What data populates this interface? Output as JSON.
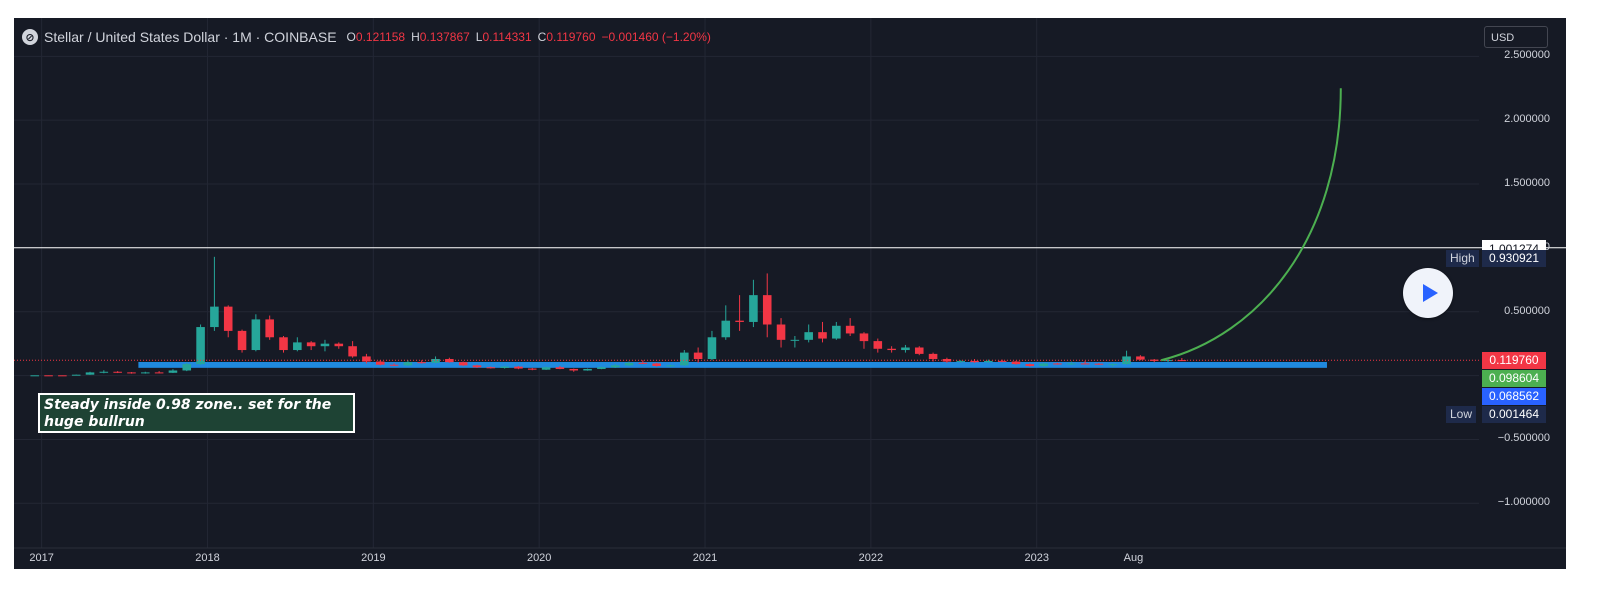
{
  "header": {
    "logo_glyph": "⊘",
    "title": "Stellar / United States Dollar · 1M · COINBASE",
    "ohlc": [
      {
        "key": "O",
        "value": "0.121158"
      },
      {
        "key": "H",
        "value": "0.137867"
      },
      {
        "key": "L",
        "value": "0.114331"
      },
      {
        "key": "C",
        "value": "0.119760"
      }
    ],
    "change": "−0.001460 (−1.20%)"
  },
  "currency_button": "USD",
  "price_labels": {
    "level_line": "1.001274",
    "high_tag": "High",
    "high_value": "0.930921",
    "close": "0.119760",
    "green": "0.098604",
    "blue": "0.068562",
    "low_tag": "Low",
    "low_value": "0.001464"
  },
  "annotation_text": "Steady inside 0.98 zone.. set for the huge bullrun",
  "colors": {
    "background": "#161a25",
    "up": "#26a69a",
    "down": "#f23645",
    "projection": "#4caf50",
    "zone": "#2196f3",
    "level_line": "#ffffff",
    "grid": "#232734"
  },
  "icons": [
    "stellar-logo-icon",
    "play-icon"
  ],
  "chart_data": {
    "type": "candlestick",
    "title": "Stellar / United States Dollar · 1M · COINBASE",
    "y_axis": {
      "ticks": [
        2.5,
        2.0,
        1.5,
        1.0,
        0.5,
        -0.5,
        -1.0
      ],
      "tick_labels": [
        "2.500000",
        "2.000000",
        "1.500000",
        "1.000000",
        "0.500000",
        "−0.500000",
        "−1.000000"
      ],
      "range": [
        -1.35,
        2.8
      ]
    },
    "x_axis": {
      "tick_labels": [
        "2017",
        "2018",
        "2019",
        "2020",
        "2021",
        "2022",
        "2023",
        "Aug"
      ],
      "tick_dates": [
        "2017-01",
        "2018-01",
        "2019-01",
        "2020-01",
        "2021-01",
        "2022-01",
        "2023-01",
        "2023-08"
      ],
      "range": [
        "2016-11",
        "2025-09"
      ]
    },
    "grid": true,
    "horizontal_level": 1.001274,
    "zone": {
      "from": "2017-08",
      "to": "2024-10",
      "low": 0.068562,
      "high": 0.098604
    },
    "projection_curve": {
      "from": {
        "date": "2023-10",
        "value": 0.12
      },
      "to": {
        "date": "2024-11",
        "value": 2.25
      }
    },
    "candles": [
      {
        "date": "2016-12",
        "o": 0.0022,
        "h": 0.0025,
        "l": 0.002,
        "c": 0.0023
      },
      {
        "date": "2017-01",
        "o": 0.0023,
        "h": 0.0026,
        "l": 0.002,
        "c": 0.0022
      },
      {
        "date": "2017-02",
        "o": 0.0022,
        "h": 0.0024,
        "l": 0.002,
        "c": 0.0021
      },
      {
        "date": "2017-03",
        "o": 0.0021,
        "h": 0.008,
        "l": 0.0019,
        "c": 0.007
      },
      {
        "date": "2017-04",
        "o": 0.007,
        "h": 0.03,
        "l": 0.006,
        "c": 0.025
      },
      {
        "date": "2017-05",
        "o": 0.025,
        "h": 0.042,
        "l": 0.018,
        "c": 0.03
      },
      {
        "date": "2017-06",
        "o": 0.03,
        "h": 0.035,
        "l": 0.02,
        "c": 0.025
      },
      {
        "date": "2017-07",
        "o": 0.025,
        "h": 0.028,
        "l": 0.015,
        "c": 0.02
      },
      {
        "date": "2017-08",
        "o": 0.02,
        "h": 0.03,
        "l": 0.015,
        "c": 0.025
      },
      {
        "date": "2017-09",
        "o": 0.025,
        "h": 0.035,
        "l": 0.018,
        "c": 0.022
      },
      {
        "date": "2017-10",
        "o": 0.022,
        "h": 0.05,
        "l": 0.02,
        "c": 0.04
      },
      {
        "date": "2017-11",
        "o": 0.04,
        "h": 0.1,
        "l": 0.035,
        "c": 0.09
      },
      {
        "date": "2017-12",
        "o": 0.09,
        "h": 0.4,
        "l": 0.085,
        "c": 0.38
      },
      {
        "date": "2018-01",
        "o": 0.38,
        "h": 0.93,
        "l": 0.35,
        "c": 0.54
      },
      {
        "date": "2018-02",
        "o": 0.54,
        "h": 0.55,
        "l": 0.3,
        "c": 0.35
      },
      {
        "date": "2018-03",
        "o": 0.35,
        "h": 0.36,
        "l": 0.18,
        "c": 0.2
      },
      {
        "date": "2018-04",
        "o": 0.2,
        "h": 0.48,
        "l": 0.19,
        "c": 0.44
      },
      {
        "date": "2018-05",
        "o": 0.44,
        "h": 0.47,
        "l": 0.28,
        "c": 0.3
      },
      {
        "date": "2018-06",
        "o": 0.3,
        "h": 0.31,
        "l": 0.18,
        "c": 0.2
      },
      {
        "date": "2018-07",
        "o": 0.2,
        "h": 0.3,
        "l": 0.19,
        "c": 0.26
      },
      {
        "date": "2018-08",
        "o": 0.26,
        "h": 0.27,
        "l": 0.2,
        "c": 0.23
      },
      {
        "date": "2018-09",
        "o": 0.23,
        "h": 0.28,
        "l": 0.19,
        "c": 0.25
      },
      {
        "date": "2018-10",
        "o": 0.25,
        "h": 0.26,
        "l": 0.21,
        "c": 0.23
      },
      {
        "date": "2018-11",
        "o": 0.23,
        "h": 0.27,
        "l": 0.14,
        "c": 0.15
      },
      {
        "date": "2018-12",
        "o": 0.15,
        "h": 0.17,
        "l": 0.095,
        "c": 0.11
      },
      {
        "date": "2019-01",
        "o": 0.11,
        "h": 0.12,
        "l": 0.08,
        "c": 0.085
      },
      {
        "date": "2019-02",
        "o": 0.085,
        "h": 0.095,
        "l": 0.075,
        "c": 0.08
      },
      {
        "date": "2019-03",
        "o": 0.08,
        "h": 0.12,
        "l": 0.075,
        "c": 0.105
      },
      {
        "date": "2019-04",
        "o": 0.105,
        "h": 0.12,
        "l": 0.095,
        "c": 0.1
      },
      {
        "date": "2019-05",
        "o": 0.1,
        "h": 0.15,
        "l": 0.095,
        "c": 0.13
      },
      {
        "date": "2019-06",
        "o": 0.13,
        "h": 0.14,
        "l": 0.1,
        "c": 0.105
      },
      {
        "date": "2019-07",
        "o": 0.105,
        "h": 0.11,
        "l": 0.075,
        "c": 0.08
      },
      {
        "date": "2019-08",
        "o": 0.08,
        "h": 0.085,
        "l": 0.06,
        "c": 0.065
      },
      {
        "date": "2019-09",
        "o": 0.065,
        "h": 0.07,
        "l": 0.055,
        "c": 0.06
      },
      {
        "date": "2019-10",
        "o": 0.06,
        "h": 0.075,
        "l": 0.055,
        "c": 0.07
      },
      {
        "date": "2019-11",
        "o": 0.07,
        "h": 0.075,
        "l": 0.05,
        "c": 0.055
      },
      {
        "date": "2019-12",
        "o": 0.055,
        "h": 0.06,
        "l": 0.042,
        "c": 0.046
      },
      {
        "date": "2020-01",
        "o": 0.046,
        "h": 0.07,
        "l": 0.044,
        "c": 0.065
      },
      {
        "date": "2020-02",
        "o": 0.065,
        "h": 0.075,
        "l": 0.05,
        "c": 0.052
      },
      {
        "date": "2020-03",
        "o": 0.052,
        "h": 0.055,
        "l": 0.03,
        "c": 0.04
      },
      {
        "date": "2020-04",
        "o": 0.04,
        "h": 0.055,
        "l": 0.038,
        "c": 0.052
      },
      {
        "date": "2020-05",
        "o": 0.052,
        "h": 0.07,
        "l": 0.05,
        "c": 0.065
      },
      {
        "date": "2020-06",
        "o": 0.065,
        "h": 0.09,
        "l": 0.06,
        "c": 0.08
      },
      {
        "date": "2020-07",
        "o": 0.08,
        "h": 0.11,
        "l": 0.075,
        "c": 0.1
      },
      {
        "date": "2020-08",
        "o": 0.1,
        "h": 0.12,
        "l": 0.09,
        "c": 0.095
      },
      {
        "date": "2020-09",
        "o": 0.095,
        "h": 0.1,
        "l": 0.07,
        "c": 0.075
      },
      {
        "date": "2020-10",
        "o": 0.075,
        "h": 0.085,
        "l": 0.07,
        "c": 0.08
      },
      {
        "date": "2020-11",
        "o": 0.08,
        "h": 0.2,
        "l": 0.075,
        "c": 0.18
      },
      {
        "date": "2020-12",
        "o": 0.18,
        "h": 0.22,
        "l": 0.1,
        "c": 0.13
      },
      {
        "date": "2021-01",
        "o": 0.13,
        "h": 0.35,
        "l": 0.12,
        "c": 0.3
      },
      {
        "date": "2021-02",
        "o": 0.3,
        "h": 0.55,
        "l": 0.28,
        "c": 0.43
      },
      {
        "date": "2021-03",
        "o": 0.43,
        "h": 0.63,
        "l": 0.35,
        "c": 0.42
      },
      {
        "date": "2021-04",
        "o": 0.42,
        "h": 0.75,
        "l": 0.38,
        "c": 0.63
      },
      {
        "date": "2021-05",
        "o": 0.63,
        "h": 0.8,
        "l": 0.3,
        "c": 0.4
      },
      {
        "date": "2021-06",
        "o": 0.4,
        "h": 0.45,
        "l": 0.22,
        "c": 0.28
      },
      {
        "date": "2021-07",
        "o": 0.28,
        "h": 0.31,
        "l": 0.22,
        "c": 0.28
      },
      {
        "date": "2021-08",
        "o": 0.28,
        "h": 0.4,
        "l": 0.26,
        "c": 0.34
      },
      {
        "date": "2021-09",
        "o": 0.34,
        "h": 0.42,
        "l": 0.26,
        "c": 0.29
      },
      {
        "date": "2021-10",
        "o": 0.29,
        "h": 0.42,
        "l": 0.28,
        "c": 0.39
      },
      {
        "date": "2021-11",
        "o": 0.39,
        "h": 0.45,
        "l": 0.31,
        "c": 0.33
      },
      {
        "date": "2021-12",
        "o": 0.33,
        "h": 0.34,
        "l": 0.21,
        "c": 0.27
      },
      {
        "date": "2022-01",
        "o": 0.27,
        "h": 0.29,
        "l": 0.18,
        "c": 0.21
      },
      {
        "date": "2022-02",
        "o": 0.21,
        "h": 0.23,
        "l": 0.18,
        "c": 0.2
      },
      {
        "date": "2022-03",
        "o": 0.2,
        "h": 0.24,
        "l": 0.18,
        "c": 0.22
      },
      {
        "date": "2022-04",
        "o": 0.22,
        "h": 0.23,
        "l": 0.16,
        "c": 0.17
      },
      {
        "date": "2022-05",
        "o": 0.17,
        "h": 0.18,
        "l": 0.11,
        "c": 0.13
      },
      {
        "date": "2022-06",
        "o": 0.13,
        "h": 0.14,
        "l": 0.1,
        "c": 0.11
      },
      {
        "date": "2022-07",
        "o": 0.11,
        "h": 0.12,
        "l": 0.1,
        "c": 0.115
      },
      {
        "date": "2022-08",
        "o": 0.115,
        "h": 0.13,
        "l": 0.1,
        "c": 0.105
      },
      {
        "date": "2022-09",
        "o": 0.105,
        "h": 0.125,
        "l": 0.1,
        "c": 0.115
      },
      {
        "date": "2022-10",
        "o": 0.115,
        "h": 0.125,
        "l": 0.105,
        "c": 0.11
      },
      {
        "date": "2022-11",
        "o": 0.11,
        "h": 0.115,
        "l": 0.085,
        "c": 0.09
      },
      {
        "date": "2022-12",
        "o": 0.09,
        "h": 0.095,
        "l": 0.07,
        "c": 0.075
      },
      {
        "date": "2023-01",
        "o": 0.075,
        "h": 0.1,
        "l": 0.07,
        "c": 0.095
      },
      {
        "date": "2023-02",
        "o": 0.095,
        "h": 0.1,
        "l": 0.085,
        "c": 0.09
      },
      {
        "date": "2023-03",
        "o": 0.09,
        "h": 0.11,
        "l": 0.085,
        "c": 0.095
      },
      {
        "date": "2023-04",
        "o": 0.095,
        "h": 0.115,
        "l": 0.09,
        "c": 0.093
      },
      {
        "date": "2023-05",
        "o": 0.093,
        "h": 0.098,
        "l": 0.085,
        "c": 0.09
      },
      {
        "date": "2023-06",
        "o": 0.09,
        "h": 0.095,
        "l": 0.07,
        "c": 0.09
      },
      {
        "date": "2023-07",
        "o": 0.09,
        "h": 0.195,
        "l": 0.085,
        "c": 0.15
      },
      {
        "date": "2023-08",
        "o": 0.15,
        "h": 0.16,
        "l": 0.12,
        "c": 0.125
      },
      {
        "date": "2023-09",
        "o": 0.125,
        "h": 0.13,
        "l": 0.105,
        "c": 0.115
      },
      {
        "date": "2023-10",
        "o": 0.115,
        "h": 0.14,
        "l": 0.105,
        "c": 0.1212
      },
      {
        "date": "2023-11",
        "o": 0.1212,
        "h": 0.1379,
        "l": 0.1143,
        "c": 0.1198
      }
    ]
  }
}
